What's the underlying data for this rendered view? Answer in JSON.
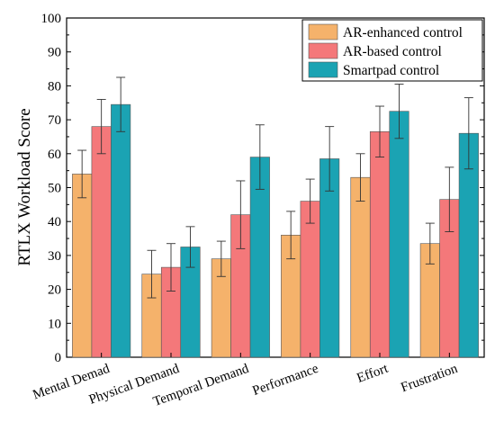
{
  "chart_data": {
    "type": "bar",
    "title": "",
    "xlabel": "",
    "ylabel": "RTLX Workload Score",
    "ylim": [
      0,
      100
    ],
    "yticks": [
      0,
      10,
      20,
      30,
      40,
      50,
      60,
      70,
      80,
      90,
      100
    ],
    "categories": [
      "Mental Demad",
      "Physical Demand",
      "Temporal Demand",
      "Performance",
      "Effort",
      "Frustration"
    ],
    "series": [
      {
        "name": "AR-enhanced control",
        "color": "#F5B26B",
        "values": [
          54,
          24.5,
          29,
          36,
          53,
          33.5
        ],
        "errors": [
          7,
          7,
          5.2,
          7,
          7,
          6
        ]
      },
      {
        "name": "AR-based control",
        "color": "#F4787A",
        "values": [
          68,
          26.5,
          42,
          46,
          66.5,
          46.5
        ],
        "errors": [
          8,
          7,
          10,
          6.5,
          7.5,
          9.5
        ]
      },
      {
        "name": "Smartpad control",
        "color": "#1BA3B3",
        "values": [
          74.5,
          32.5,
          59,
          58.5,
          72.5,
          66
        ],
        "errors": [
          8,
          6,
          9.5,
          9.5,
          8,
          10.5
        ]
      }
    ],
    "legend_position": "top-right",
    "grid": false
  }
}
